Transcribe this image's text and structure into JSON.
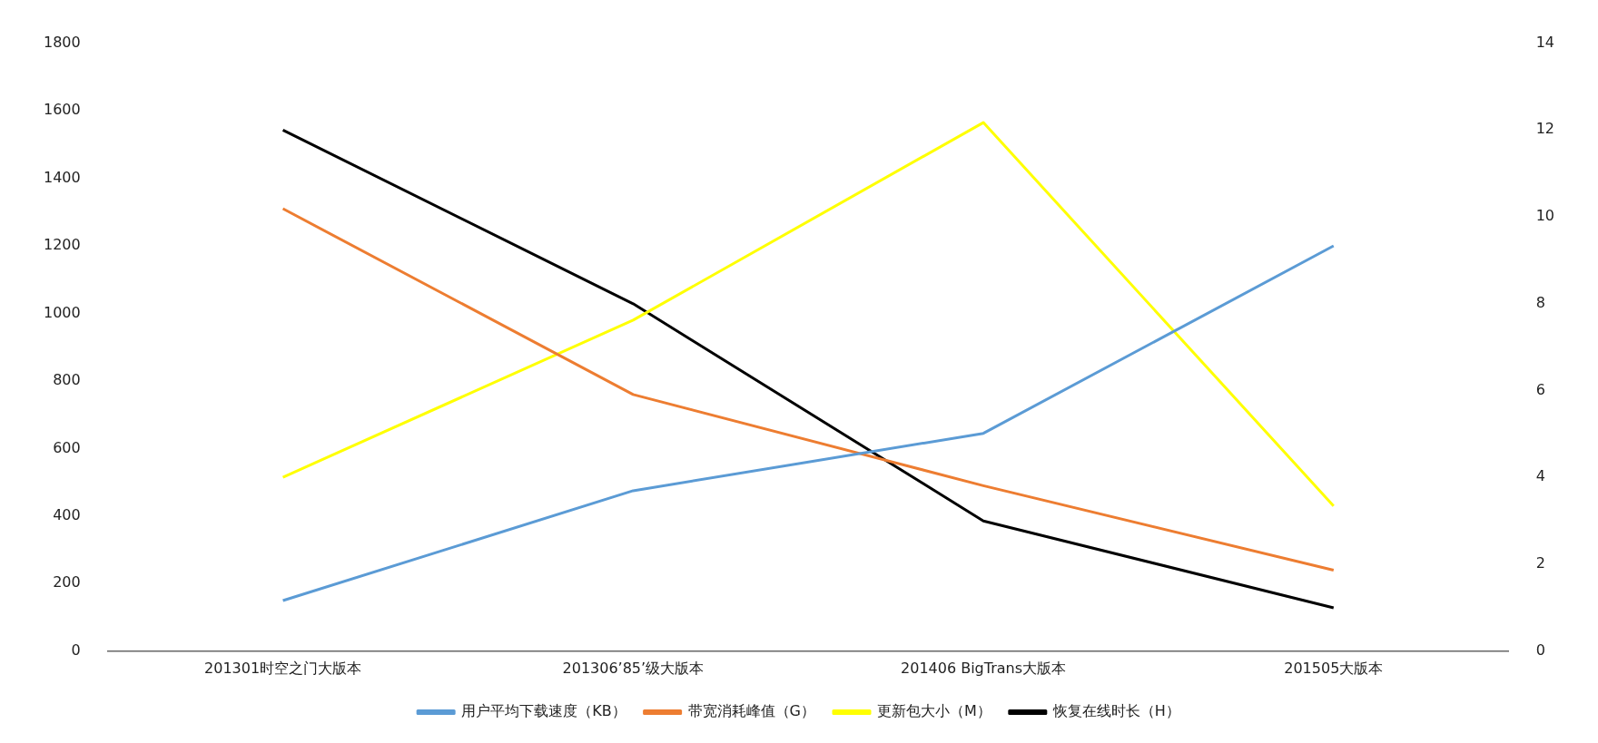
{
  "chart_data": {
    "type": "line",
    "categories": [
      "201301时空之门大版本",
      "201306’85’级大版本",
      "201406 BigTrans大版本",
      "201505大版本"
    ],
    "series": [
      {
        "name": "用户平均下载速度（KB）",
        "color": "#5b9bd5",
        "values": [
          150,
          475,
          645,
          1200
        ]
      },
      {
        "name": "带宽消耗峰值（G）",
        "color": "#ed7d31",
        "values": [
          1310,
          760,
          490,
          240
        ]
      },
      {
        "name": "更新包大小（M）",
        "color": "#ffff00",
        "values": [
          515,
          980,
          1565,
          430
        ]
      },
      {
        "name": "恢复在线时长（H）",
        "color": "#000000",
        "values": [
          12,
          8,
          3,
          1
        ],
        "axis": "y2"
      }
    ],
    "ylim": [
      0,
      1800
    ],
    "yticks": [
      0,
      200,
      400,
      600,
      800,
      1000,
      1200,
      1400,
      1600,
      1800
    ],
    "y2lim": [
      0,
      14
    ],
    "y2ticks": [
      0,
      2,
      4,
      6,
      8,
      10,
      12,
      14
    ],
    "grid": false,
    "legend": "bottom",
    "marker": "none",
    "line_style": "solid"
  }
}
